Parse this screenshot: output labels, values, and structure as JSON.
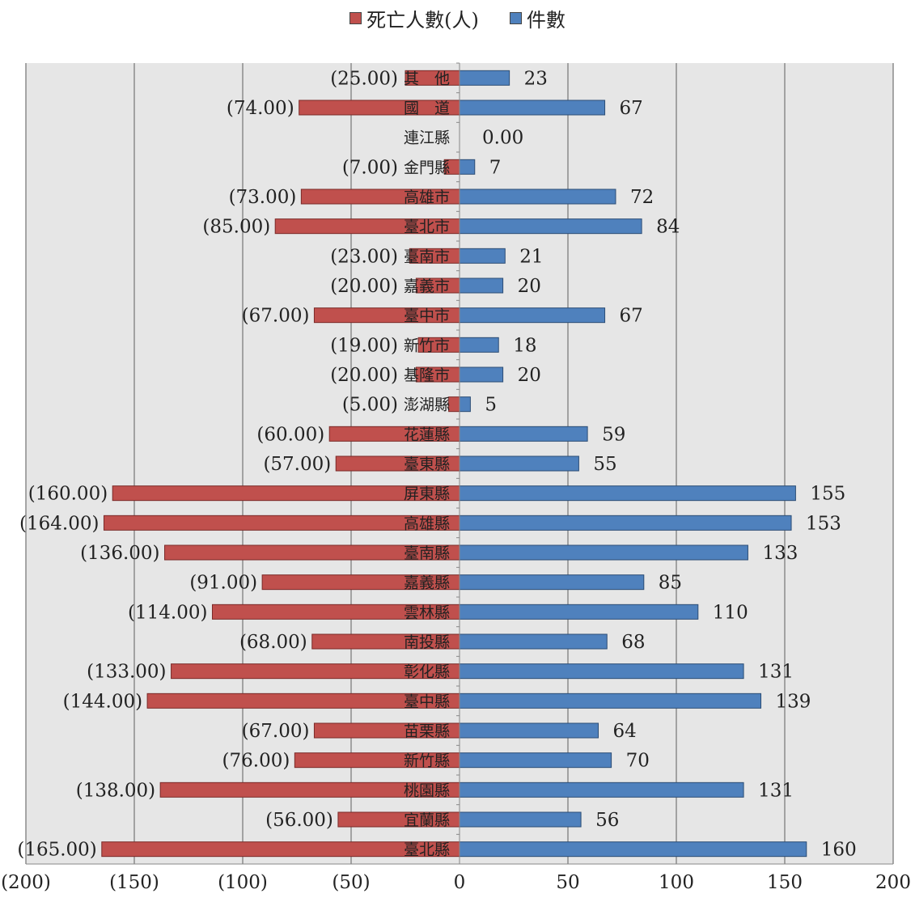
{
  "chart_data": {
    "type": "bar",
    "orientation": "horizontal-diverging",
    "title": "",
    "xlabel": "",
    "ylabel": "",
    "xlim": [
      -200,
      200
    ],
    "xticks": [
      -200,
      -150,
      -100,
      -50,
      0,
      50,
      100,
      150,
      200
    ],
    "xtick_labels": [
      "(200)",
      "(150)",
      "(100)",
      "(50)",
      "0",
      "50",
      "100",
      "150",
      "200"
    ],
    "grid": true,
    "legend_position": "top",
    "categories": [
      "其　他",
      "國　道",
      "連江縣",
      "金門縣",
      "高雄市",
      "臺北市",
      "臺南市",
      "嘉義市",
      "臺中市",
      "新竹市",
      "基隆市",
      "澎湖縣",
      "花蓮縣",
      "臺東縣",
      "屏東縣",
      "高雄縣",
      "臺南縣",
      "嘉義縣",
      "雲林縣",
      "南投縣",
      "彰化縣",
      "臺中縣",
      "苗栗縣",
      "新竹縣",
      "桃園縣",
      "宜蘭縣",
      "臺北縣"
    ],
    "series": [
      {
        "name": "死亡人數(人)",
        "color": "#C0504D",
        "values": [
          -25,
          -74,
          0,
          -7,
          -73,
          -85,
          -23,
          -20,
          -67,
          -19,
          -20,
          -5,
          -60,
          -57,
          -160,
          -164,
          -136,
          -91,
          -114,
          -68,
          -133,
          -144,
          -67,
          -76,
          -138,
          -56,
          -165
        ],
        "labels": [
          "(25.00)",
          "(74.00)",
          "",
          "(7.00)",
          "(73.00)",
          "(85.00)",
          "(23.00)",
          "(20.00)",
          "(67.00)",
          "(19.00)",
          "(20.00)",
          "(5.00)",
          "(60.00)",
          "(57.00)",
          "(160.00)",
          "(164.00)",
          "(136.00)",
          "(91.00)",
          "(114.00)",
          "(68.00)",
          "(133.00)",
          "(144.00)",
          "(67.00)",
          "(76.00)",
          "(138.00)",
          "(56.00)",
          "(165.00)"
        ]
      },
      {
        "name": "件數",
        "color": "#4F81BD",
        "values": [
          23,
          67,
          0,
          7,
          72,
          84,
          21,
          20,
          67,
          18,
          20,
          5,
          59,
          55,
          155,
          153,
          133,
          85,
          110,
          68,
          131,
          139,
          64,
          70,
          131,
          56,
          160
        ],
        "labels": [
          "23",
          "67",
          "0.00",
          "7",
          "72",
          "84",
          "21",
          "20",
          "67",
          "18",
          "20",
          "5",
          "59",
          "55",
          "155",
          "153",
          "133",
          "85",
          "110",
          "68",
          "131",
          "139",
          "64",
          "70",
          "131",
          "56",
          "160"
        ]
      }
    ]
  }
}
